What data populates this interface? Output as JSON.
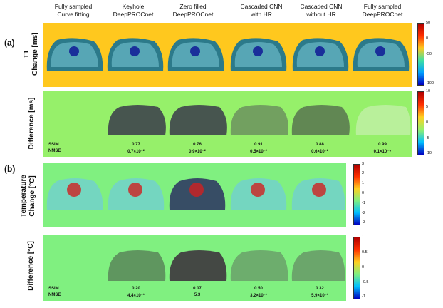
{
  "columns": [
    "Fully sampled\nCurve fitting",
    "Keyhole\nDeepPROCnet",
    "Zero filled\nDeepPROCnet",
    "Cascaded CNN\nwith HR",
    "Cascaded CNN\nwithout HR",
    "Fully sampled\nDeepPROCnet"
  ],
  "panel_a": {
    "label": "(a)",
    "row1_label_l1": "T1",
    "row1_label_l2": "Change [ms]",
    "row2_label": "Difference [ms]",
    "row1_colorbar": [
      "50",
      "0",
      "-50",
      "-100"
    ],
    "row2_colorbar": [
      "10",
      "5",
      "0",
      "-5",
      "-10"
    ],
    "metrics": {
      "ssim_label": "SSIM",
      "nmse_label": "NMSE",
      "ssim": [
        "0.77",
        "0.76",
        "0.91",
        "0.88",
        "0.99"
      ],
      "nmse": [
        "0.7×10⁻²",
        "0.9×10⁻²",
        "0.5×10⁻²",
        "0.6×10⁻²",
        "0.1×10⁻⁴"
      ]
    }
  },
  "panel_b": {
    "label": "(b)",
    "row1_label_l1": "Temperature",
    "row1_label_l2": "Change [°C]",
    "row2_label": "Difference [°C]",
    "row1_colorbar": [
      "3",
      "2",
      "1",
      "0",
      "-1",
      "-2",
      "-3"
    ],
    "row2_colorbar": [
      "1",
      "0.5",
      "0",
      "-0.5",
      "-1"
    ],
    "metrics": {
      "ssim_label": "SSIM",
      "nmse_label": "NMSE",
      "ssim": [
        "0.20",
        "0.07",
        "0.50",
        "0.32"
      ],
      "nmse": [
        "4.4×10⁻¹",
        "5.3",
        "3.2×10⁻¹",
        "5.9×10⁻¹"
      ]
    }
  },
  "colors": {
    "t1_bg": "#ffc81e",
    "diff_bg": "#96f06a",
    "temp_bg": "#80f080"
  }
}
